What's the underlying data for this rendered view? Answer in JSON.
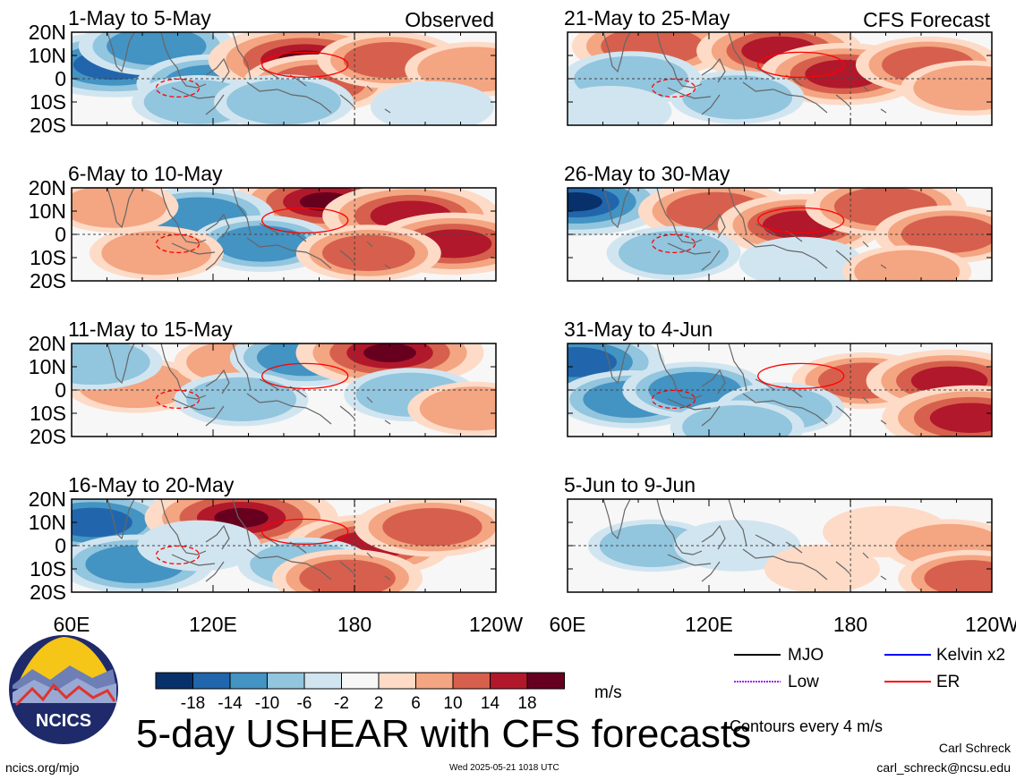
{
  "chart_data": {
    "type": "heatmap",
    "title": "5-day USHEAR with CFS forecasts",
    "labels": {
      "left": "Observed",
      "right": "CFS Forecast"
    },
    "panels": [
      {
        "period": "1-May to 5-May",
        "kind": "Observed"
      },
      {
        "period": "6-May to 10-May",
        "kind": "Observed"
      },
      {
        "period": "11-May to 15-May",
        "kind": "Observed"
      },
      {
        "period": "16-May to 20-May",
        "kind": "Observed"
      },
      {
        "period": "21-May to 25-May",
        "kind": "CFS Forecast"
      },
      {
        "period": "26-May to 30-May",
        "kind": "CFS Forecast"
      },
      {
        "period": "31-May to 4-Jun",
        "kind": "CFS Forecast"
      },
      {
        "period": "5-Jun to 9-Jun",
        "kind": "CFS Forecast"
      }
    ],
    "lat_ticks": [
      "20N",
      "10N",
      "0",
      "10S",
      "20S"
    ],
    "lon_ticks": [
      "60E",
      "120E",
      "180",
      "120W"
    ],
    "colorbar": {
      "ticks": [
        "-18",
        "-14",
        "-10",
        "-6",
        "-2",
        "2",
        "6",
        "10",
        "14",
        "18"
      ],
      "colors": [
        "#08306b",
        "#2166ac",
        "#4393c3",
        "#92c5de",
        "#d1e5f0",
        "#f7f7f7",
        "#fddbc7",
        "#f4a582",
        "#d6604d",
        "#b2182b",
        "#67001f"
      ],
      "units": "m/s"
    },
    "legend": [
      {
        "label": "MJO",
        "color": "#000000"
      },
      {
        "label": "Kelvin x2",
        "color": "#0000ff"
      },
      {
        "label": "Low",
        "color": "#a020f0"
      },
      {
        "label": "ER",
        "color": "#ff0000"
      }
    ],
    "contour_note": "Contours every 4 m/s",
    "blobs": [
      [
        [
          0.1,
          0.35,
          -1.3
        ],
        [
          0.2,
          0.15,
          -0.9
        ],
        [
          0.33,
          0.55,
          -0.8
        ],
        [
          0.55,
          0.3,
          1.6
        ],
        [
          0.58,
          0.55,
          0.8
        ],
        [
          0.75,
          0.3,
          0.7
        ],
        [
          0.95,
          0.4,
          0.6
        ],
        [
          0.3,
          0.75,
          -0.5
        ],
        [
          0.5,
          0.75,
          -0.6
        ],
        [
          0.85,
          0.8,
          -0.3
        ]
      ],
      [
        [
          0.6,
          0.15,
          1.5
        ],
        [
          0.8,
          0.3,
          1.3
        ],
        [
          0.9,
          0.6,
          1.1
        ],
        [
          0.3,
          0.3,
          -0.8
        ],
        [
          0.45,
          0.6,
          -0.7
        ],
        [
          0.7,
          0.7,
          0.7
        ],
        [
          0.2,
          0.7,
          0.5
        ],
        [
          0.1,
          0.2,
          0.4
        ]
      ],
      [
        [
          0.15,
          0.45,
          0.6
        ],
        [
          0.4,
          0.2,
          0.5
        ],
        [
          0.55,
          0.15,
          -0.8
        ],
        [
          0.75,
          0.1,
          1.5
        ],
        [
          0.8,
          0.55,
          -0.5
        ],
        [
          0.4,
          0.6,
          -0.5
        ],
        [
          0.05,
          0.2,
          -0.6
        ],
        [
          0.95,
          0.7,
          0.5
        ]
      ],
      [
        [
          0.05,
          0.25,
          -1.2
        ],
        [
          0.15,
          0.7,
          -0.9
        ],
        [
          0.4,
          0.2,
          1.6
        ],
        [
          0.7,
          0.5,
          1.1
        ],
        [
          0.85,
          0.3,
          0.9
        ],
        [
          0.55,
          0.7,
          -0.5
        ],
        [
          0.65,
          0.85,
          0.8
        ],
        [
          0.3,
          0.5,
          -0.3
        ]
      ],
      [
        [
          0.2,
          0.15,
          1.0
        ],
        [
          0.5,
          0.2,
          1.1
        ],
        [
          0.65,
          0.45,
          1.1
        ],
        [
          0.85,
          0.35,
          0.7
        ],
        [
          0.4,
          0.7,
          -0.5
        ],
        [
          0.15,
          0.5,
          -0.6
        ],
        [
          0.1,
          0.85,
          -0.3
        ],
        [
          0.95,
          0.6,
          0.6
        ]
      ],
      [
        [
          0.02,
          0.15,
          -1.5
        ],
        [
          0.35,
          0.25,
          0.9
        ],
        [
          0.55,
          0.4,
          1.1
        ],
        [
          0.75,
          0.2,
          1.0
        ],
        [
          0.9,
          0.5,
          0.8
        ],
        [
          0.25,
          0.7,
          -0.5
        ],
        [
          0.55,
          0.8,
          -0.3
        ],
        [
          0.8,
          0.9,
          0.4
        ]
      ],
      [
        [
          0.02,
          0.2,
          -1.3
        ],
        [
          0.15,
          0.6,
          -0.8
        ],
        [
          0.3,
          0.5,
          -0.7
        ],
        [
          0.7,
          0.4,
          0.7
        ],
        [
          0.9,
          0.4,
          1.1
        ],
        [
          0.95,
          0.8,
          1.3
        ],
        [
          0.5,
          0.7,
          -0.4
        ],
        [
          0.4,
          0.9,
          -0.5
        ]
      ],
      [
        [
          0.2,
          0.5,
          -0.4
        ],
        [
          0.4,
          0.5,
          -0.35
        ],
        [
          0.75,
          0.35,
          0.35
        ],
        [
          0.9,
          0.5,
          0.45
        ],
        [
          0.95,
          0.85,
          0.7
        ],
        [
          0.6,
          0.75,
          0.15
        ]
      ]
    ]
  },
  "branding": {
    "logo_text": "NCICS",
    "site": "ncics.org/mjo",
    "timestamp": "Wed 2025-05-21 1018 UTC",
    "author": "Carl Schreck",
    "email": "carl_schreck@ncsu.edu"
  }
}
